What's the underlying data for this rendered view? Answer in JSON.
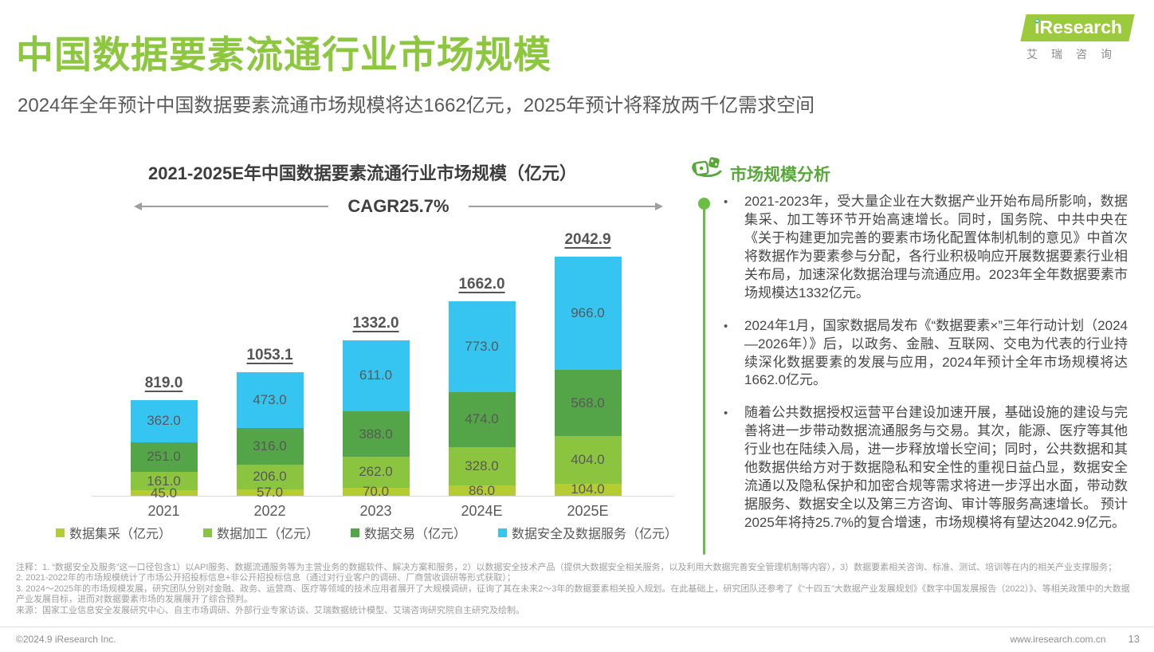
{
  "page": {
    "title": "中国数据要素流通行业市场规模",
    "subtitle": "2024年全年预计中国数据要素流通市场规模将达1662亿元，2025年预计将释放两千亿需求空间"
  },
  "logo": {
    "brand": "iResearch",
    "subtext": "艾瑞咨询"
  },
  "chart_data": {
    "type": "bar",
    "stacked": true,
    "title": "2021-2025E年中国数据要素流通行业市场规模（亿元）",
    "cagr_label": "CAGR25.7%",
    "categories": [
      "2021",
      "2022",
      "2023",
      "2024E",
      "2025E"
    ],
    "totals": [
      819.0,
      1053.1,
      1332.0,
      1662.0,
      2042.9
    ],
    "series": [
      {
        "name": "数据集采（亿元）",
        "color": "#b5cc33",
        "values": [
          45.0,
          57.0,
          70.0,
          86.0,
          104.0
        ]
      },
      {
        "name": "数据加工（亿元）",
        "color": "#8bc53f",
        "values": [
          161.0,
          206.0,
          262.0,
          328.0,
          404.0
        ]
      },
      {
        "name": "数据交易（亿元）",
        "color": "#54a547",
        "values": [
          251.0,
          316.0,
          388.0,
          474.0,
          568.0
        ]
      },
      {
        "name": "数据安全及数据服务（亿元）",
        "color": "#35c5f0",
        "values": [
          362.0,
          473.0,
          611.0,
          773.0,
          966.0
        ]
      }
    ],
    "ylim": [
      0,
      2100
    ],
    "ylabel": "",
    "xlabel": "",
    "grid": false,
    "legend_position": "bottom"
  },
  "analysis": {
    "heading": "市场规模分析",
    "bullet_marker": "•",
    "bullets": [
      "2021-2023年，受大量企业在大数据产业开始布局所影响，数据集采、加工等环节开始高速增长。同时，国务院、中共中央在《关于构建更加完善的要素市场化配置体制机制的意见》中首次将数据作为要素参与分配，各行业积极响应开展数据要素行业相关布局，加速深化数据治理与流通应用。2023年全年数据要素市场规模达1332亿元。",
      "2024年1月，国家数据局发布《“数据要素×”三年行动计划（2024—2026年）》后，以政务、金融、互联网、交电为代表的行业持续深化数据要素的发展与应用，2024年预计全年市场规模将达1662.0亿元。",
      "随着公共数据授权运营平台建设加速开展，基础设施的建设与完善将进一步带动数据流通服务与交易。其次，能源、医疗等其他行业也在陆续入局，进一步释放增长空间；同时，公共数据和其他数据供给方对于数据隐私和安全性的重视日益凸显，数据安全流通以及隐私保护和加密合规等需求将进一步浮出水面，带动数据服务、数据安全以及第三方咨询、审计等服务高速增长。 预计2025年将持25.7%的复合增速，市场规模将有望达2042.9亿元。"
    ]
  },
  "notes": {
    "lines": [
      "注释：1. “数据安全及服务”这一口径包含1）以API服务、数据流通服务等为主营业务的数据软件、解决方案和服务，2）以数据安全技术产品（提供大数据安全相关服务，以及利用大数据完善安全管理机制等内容），3）数据要素相关咨询、标准、测试、培训等在内的相关产业支撑服务；",
      "2. 2021-2022年的市场规模统计了市场公开招投标信息+非公开招投标信息（通过对行业客户的调研、厂商营收调研等形式获取）；",
      "3. 2024～2025年的市场规模发展，研究团队分别对金融、政务、运营商、医疗等领域的技术应用者展开了大规模调研，征询了其在未来2～3年的数据要素相关投入规划。在此基础上，研究团队还参考了《“十四五”大数据产业发展规划》《数字中国发展报告（2022）》、等相关政策中的大数据产业发展目标，进而对数据要素市场的发展展开了综合预判。"
    ],
    "source": "来源：国家工业信息安全发展研究中心、自主市场调研、外部行业专家访谈、艾瑞数据统计模型、艾瑞咨询研究院自主研究及绘制。"
  },
  "footer": {
    "copyright": "©2024.9 iResearch Inc.",
    "website": "www.iresearch.com.cn",
    "page_number": "13"
  }
}
